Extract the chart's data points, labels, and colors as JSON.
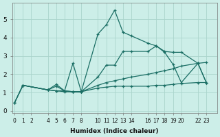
{
  "xlabel": "Humidex (Indice chaleur)",
  "ylabel": "",
  "bg_color": "#cceee8",
  "line_color": "#1a6e64",
  "grid_color": "#aad4cc",
  "xtick_labels": [
    "0",
    "1",
    "2",
    "4",
    "5",
    "6",
    "7",
    "8",
    "10",
    "11",
    "12",
    "13",
    "14",
    "16",
    "17",
    "18",
    "19",
    "20",
    "22",
    "23"
  ],
  "xtick_pos": [
    0,
    1,
    2,
    4,
    5,
    6,
    7,
    8,
    10,
    11,
    12,
    13,
    14,
    16,
    17,
    18,
    19,
    20,
    22,
    23
  ],
  "xlim": [
    -0.3,
    24.3
  ],
  "ylim": [
    -0.1,
    5.9
  ],
  "yticks": [
    0,
    1,
    2,
    3,
    4,
    5
  ],
  "series": [
    {
      "x": [
        0,
        1,
        4,
        5,
        6,
        7,
        8,
        10,
        11,
        12,
        13,
        14,
        16,
        17,
        18,
        19,
        20,
        22,
        23
      ],
      "y": [
        0.45,
        1.4,
        1.15,
        1.45,
        1.1,
        2.6,
        1.05,
        4.2,
        4.7,
        5.5,
        4.3,
        4.1,
        3.7,
        3.55,
        3.2,
        2.55,
        1.55,
        2.6,
        1.55
      ]
    },
    {
      "x": [
        0,
        1,
        4,
        5,
        6,
        7,
        8,
        10,
        11,
        12,
        13,
        14,
        16,
        17,
        18,
        19,
        20,
        22,
        23
      ],
      "y": [
        0.45,
        1.4,
        1.15,
        1.35,
        1.1,
        1.05,
        1.05,
        1.85,
        2.5,
        2.5,
        3.25,
        3.25,
        3.25,
        3.55,
        3.25,
        3.2,
        3.2,
        2.6,
        1.55
      ]
    },
    {
      "x": [
        0,
        1,
        4,
        5,
        6,
        7,
        8,
        10,
        11,
        12,
        13,
        14,
        16,
        17,
        18,
        19,
        20,
        22,
        23
      ],
      "y": [
        0.45,
        1.4,
        1.15,
        1.1,
        1.1,
        1.05,
        1.05,
        1.25,
        1.3,
        1.35,
        1.35,
        1.35,
        1.35,
        1.4,
        1.4,
        1.45,
        1.5,
        1.55,
        1.55
      ]
    },
    {
      "x": [
        1,
        4,
        5,
        6,
        7,
        8,
        10,
        11,
        12,
        13,
        14,
        16,
        17,
        18,
        19,
        20,
        22,
        23
      ],
      "y": [
        1.4,
        1.15,
        1.1,
        1.05,
        1.05,
        1.05,
        1.4,
        1.55,
        1.65,
        1.75,
        1.85,
        2.0,
        2.1,
        2.2,
        2.3,
        2.45,
        2.6,
        2.65
      ]
    }
  ]
}
